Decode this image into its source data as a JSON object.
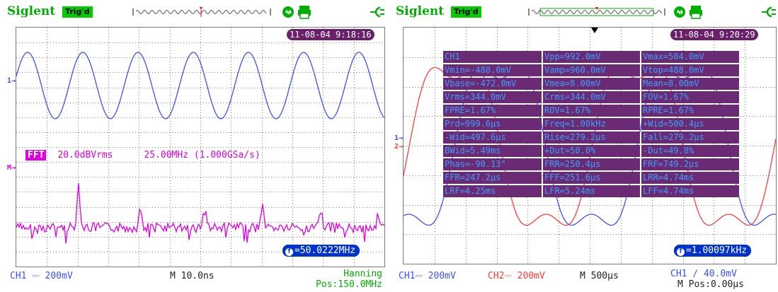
{
  "left_screen": {
    "brand": "Siglent",
    "trigger_status": "Trig'd",
    "datetime": "11-08-04 9:18:16",
    "ch1_marker": "1",
    "fft": {
      "tag": "FFT",
      "scale": "20.0dBVrms",
      "span": "25.00MHz (1.000GSa/s)",
      "marker": "M"
    },
    "frequency_readout": "=50.0222MHz",
    "footer": {
      "ch1": "CH1 ⎓ 200mV",
      "timebase": "M 10.0ns",
      "window": "Hanning",
      "position": "Pos:150.0MHz"
    }
  },
  "right_screen": {
    "brand": "Siglent",
    "trigger_status": "Trig'd",
    "datetime": "11-08-04 9:20:29",
    "ch1_marker": "1",
    "ch2_marker": "2",
    "frequency_readout": "=1.00097kHz",
    "measurements": [
      [
        "CH1",
        "Vpp=992.0mV",
        "Vmax=504.0mV"
      ],
      [
        "Vmin=-488.0mV",
        "Vamp=960.0mV",
        "Vtop=488.0mV"
      ],
      [
        "Vbase=-472.0mV",
        "Vmea=8.00mV",
        "Mean=8.00mV"
      ],
      [
        "Vrms=344.0mV",
        "Crms=344.0mV",
        "FOV=1.67%"
      ],
      [
        "FPRE=1.67%",
        "ROV=1.67%",
        "RPRE=1.67%"
      ],
      [
        "Prd=999.6μs",
        "Freq=1.00kHz",
        "+Wid=500.4μs"
      ],
      [
        "-Wid=497.6μs",
        "Rise=279.2μs",
        "Fall=279.2μs"
      ],
      [
        "BWid=5.49ms",
        "+Dut=50.0%",
        "-Dut=49.8%"
      ],
      [
        "Phas=-90.13°",
        "FRR=250.4μs",
        "FRF=749.2μs"
      ],
      [
        "FFR=247.2μs",
        "FFF=251.6μs",
        "LRR=4.74ms"
      ],
      [
        "LRF=4.25ms",
        "LFR=5.24ms",
        "LFF=4.74ms"
      ]
    ],
    "footer": {
      "ch1": "CH1⎓ 200mV",
      "ch2": "CH2⎓ 200mV",
      "timebase": "M 500μs",
      "trigger": "CH1 ∕ 40.0mV",
      "position": "M Pos:0.00μs"
    }
  },
  "colors": {
    "brand": "#00b000",
    "ch1": "#3c50ff",
    "ch2": "#ff3c3c",
    "fft": "#e000e0",
    "badge": "#6b1f6b",
    "readout": "#0033cc"
  },
  "icons": [
    "usb-icon",
    "printer-icon",
    "power-plug-icon",
    "trigger-position-icon"
  ]
}
